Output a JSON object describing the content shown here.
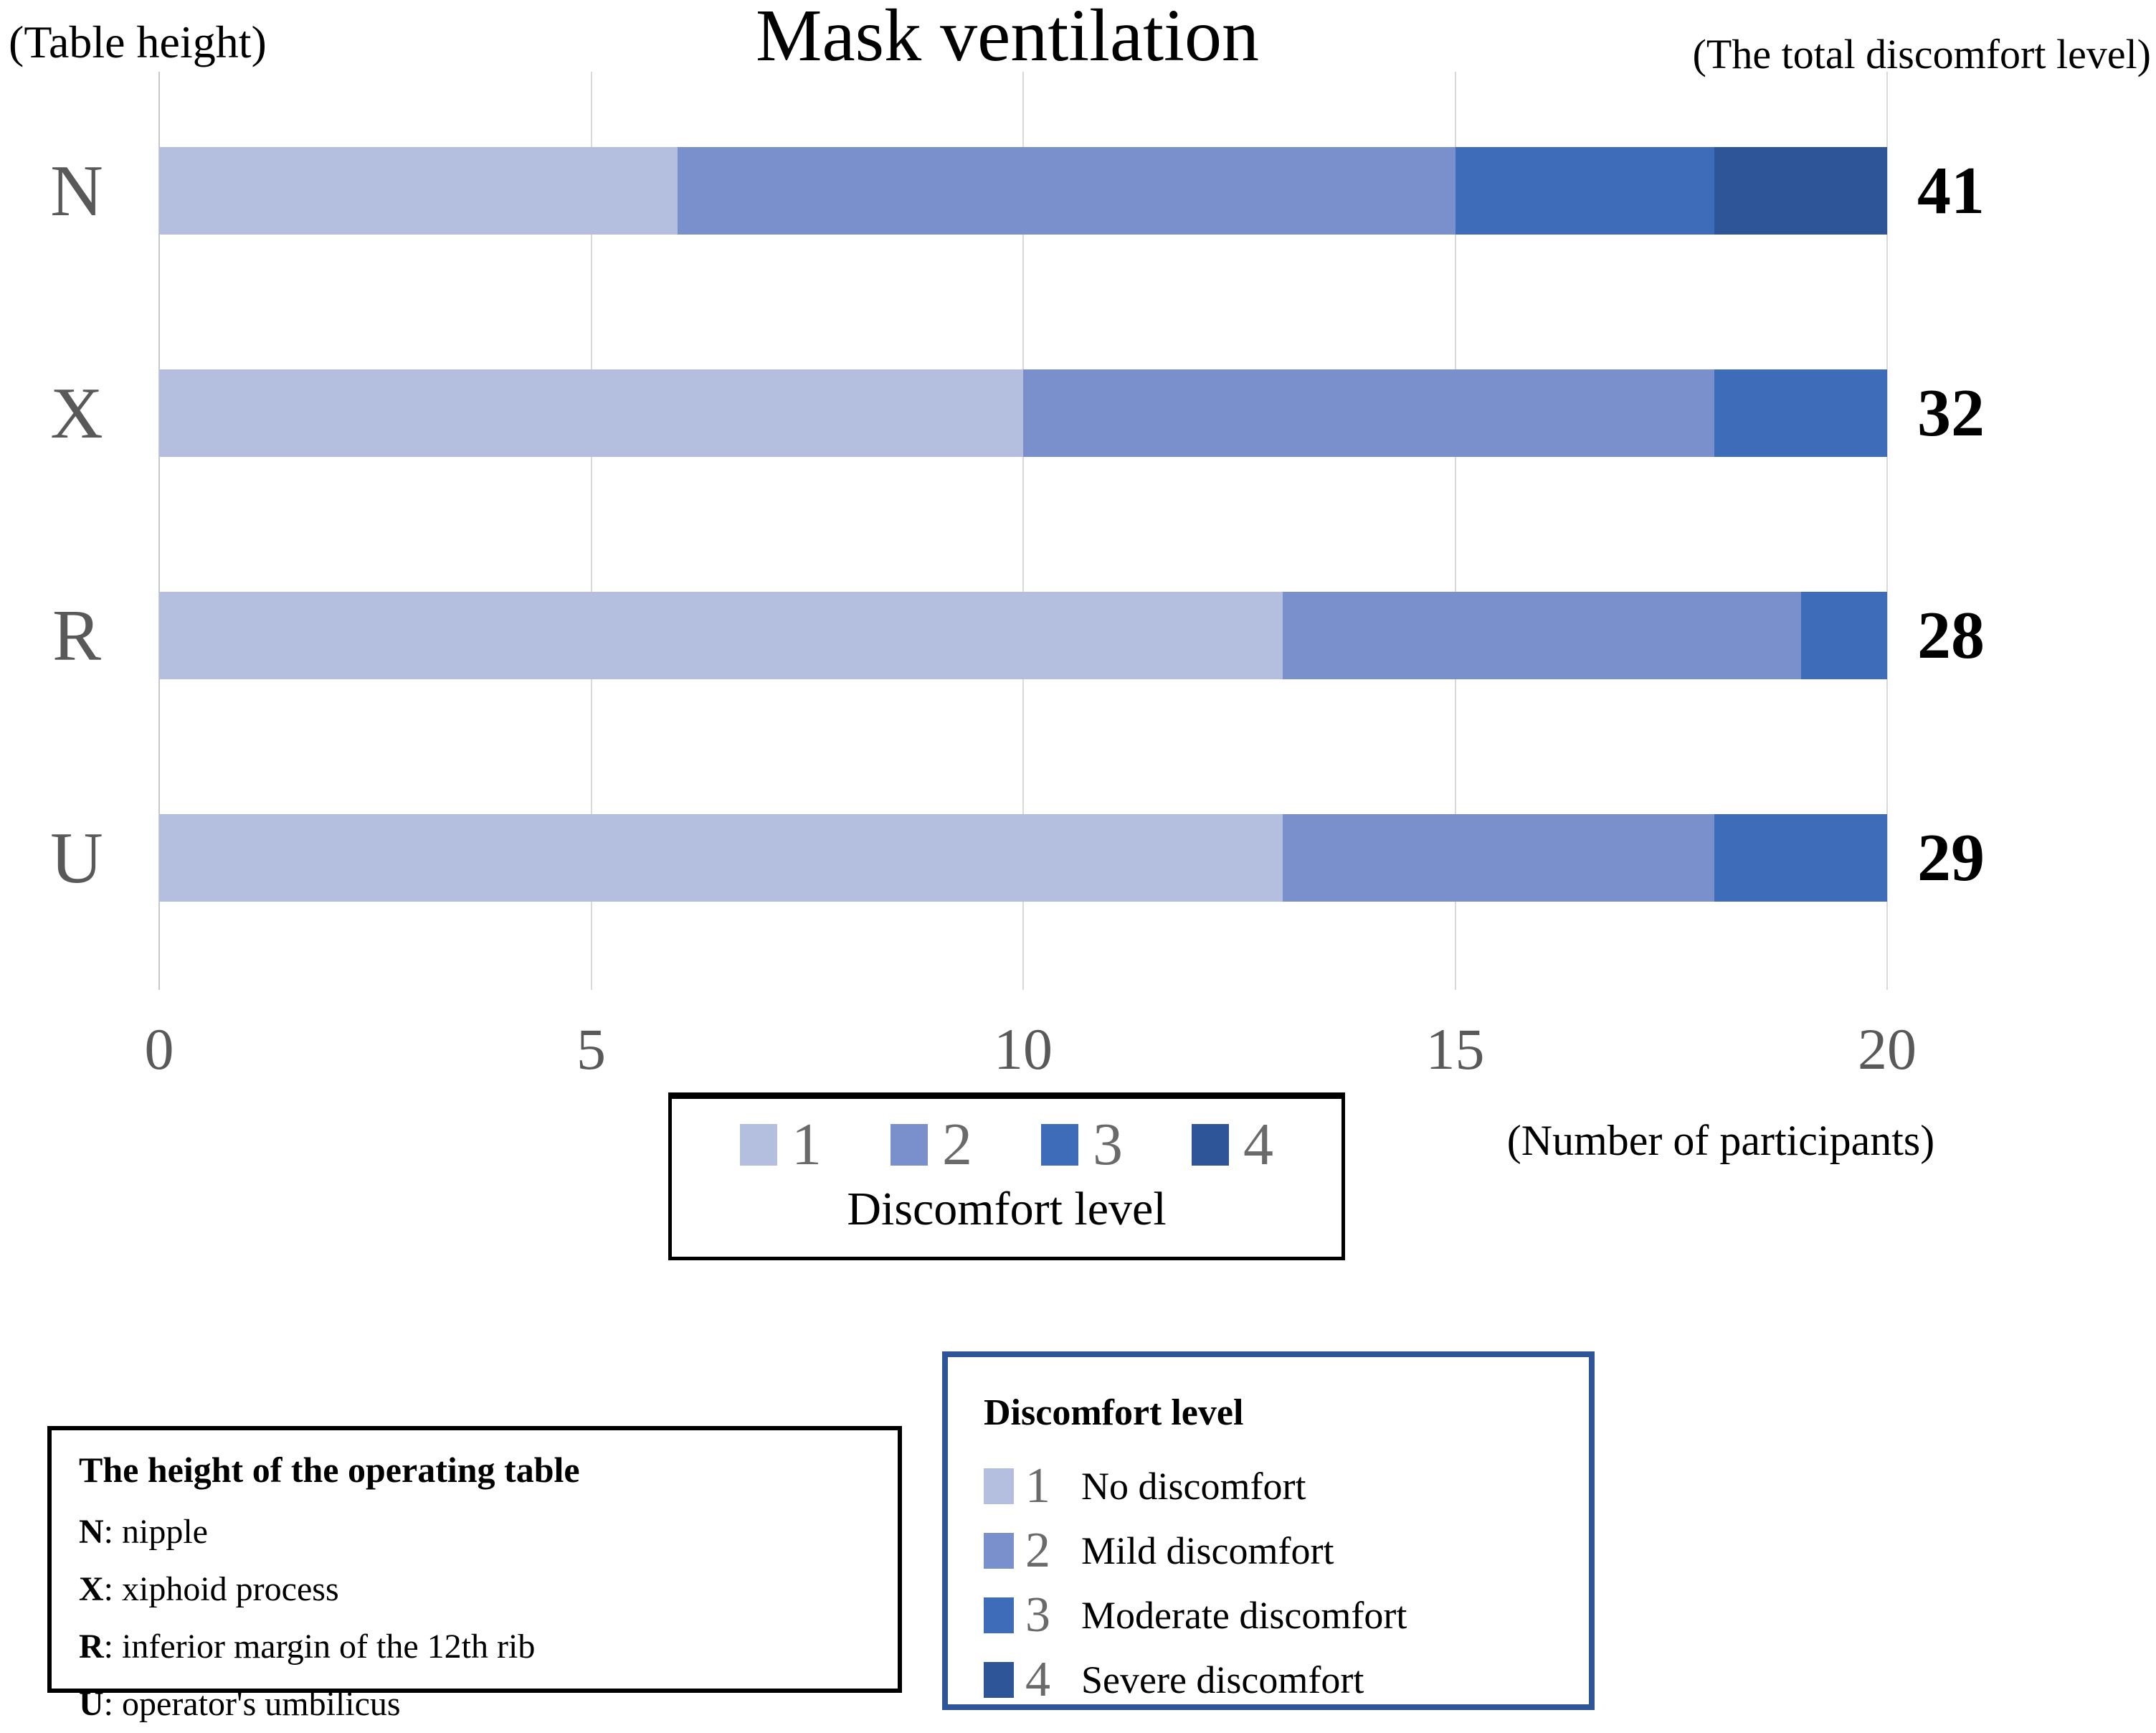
{
  "header": {
    "left_label": "(Table height)",
    "title": "Mask ventilation",
    "right_label": "(The total discomfort level)"
  },
  "chart_data": {
    "type": "bar",
    "orientation": "horizontal",
    "stacked": true,
    "title": "Mask ventilation",
    "categories": [
      "N",
      "X",
      "R",
      "U"
    ],
    "series": [
      {
        "name": "1",
        "label": "No discomfort",
        "color": "#b4bfe0",
        "values": [
          6,
          10,
          13,
          13
        ]
      },
      {
        "name": "2",
        "label": "Mild discomfort",
        "color": "#7990cd",
        "values": [
          9,
          8,
          6,
          5
        ]
      },
      {
        "name": "3",
        "label": "Moderate discomfort",
        "color": "#3f6cb8",
        "values": [
          3,
          2,
          1,
          2
        ]
      },
      {
        "name": "4",
        "label": "Severe discomfort",
        "color": "#2e5597",
        "values": [
          2,
          0,
          0,
          0
        ]
      }
    ],
    "totals": [
      41,
      32,
      28,
      29
    ],
    "x_axis": {
      "min": 0,
      "max": 20,
      "ticks": [
        0,
        5,
        10,
        15,
        20
      ]
    },
    "xlabel": "(Number of participants)",
    "ylabel": "(Table height)",
    "totals_label": "(The total discomfort level)",
    "legend_title": "Discomfort level",
    "legend_position": "bottom",
    "grid": true
  },
  "legend": {
    "caption": "Discomfort level"
  },
  "axis_note": "(Number of participants)",
  "notes": {
    "table_box": {
      "title": "The height of the operating table",
      "items": [
        {
          "key": "N",
          "desc": ": nipple"
        },
        {
          "key": "X",
          "desc": ": xiphoid process"
        },
        {
          "key": "R",
          "desc": ": inferior margin of the 12th rib"
        },
        {
          "key": "U",
          "desc": ": operator's umbilicus"
        }
      ]
    },
    "discomfort_box": {
      "title": "Discomfort level",
      "items": [
        {
          "num": "1",
          "desc": "No discomfort",
          "color": "#b4bfe0"
        },
        {
          "num": "2",
          "desc": "Mild discomfort",
          "color": "#7990cd"
        },
        {
          "num": "3",
          "desc": "Moderate discomfort",
          "color": "#3f6cb8"
        },
        {
          "num": "4",
          "desc": "Severe discomfort",
          "color": "#2e5597"
        }
      ]
    }
  },
  "colors": {
    "level1": "#b4bfe0",
    "level2": "#7990cd",
    "level3": "#3f6cb8",
    "level4": "#2e5597",
    "grid": "#d9d9d9",
    "axis_text": "#595959",
    "blue_box_border": "#2e5597"
  }
}
